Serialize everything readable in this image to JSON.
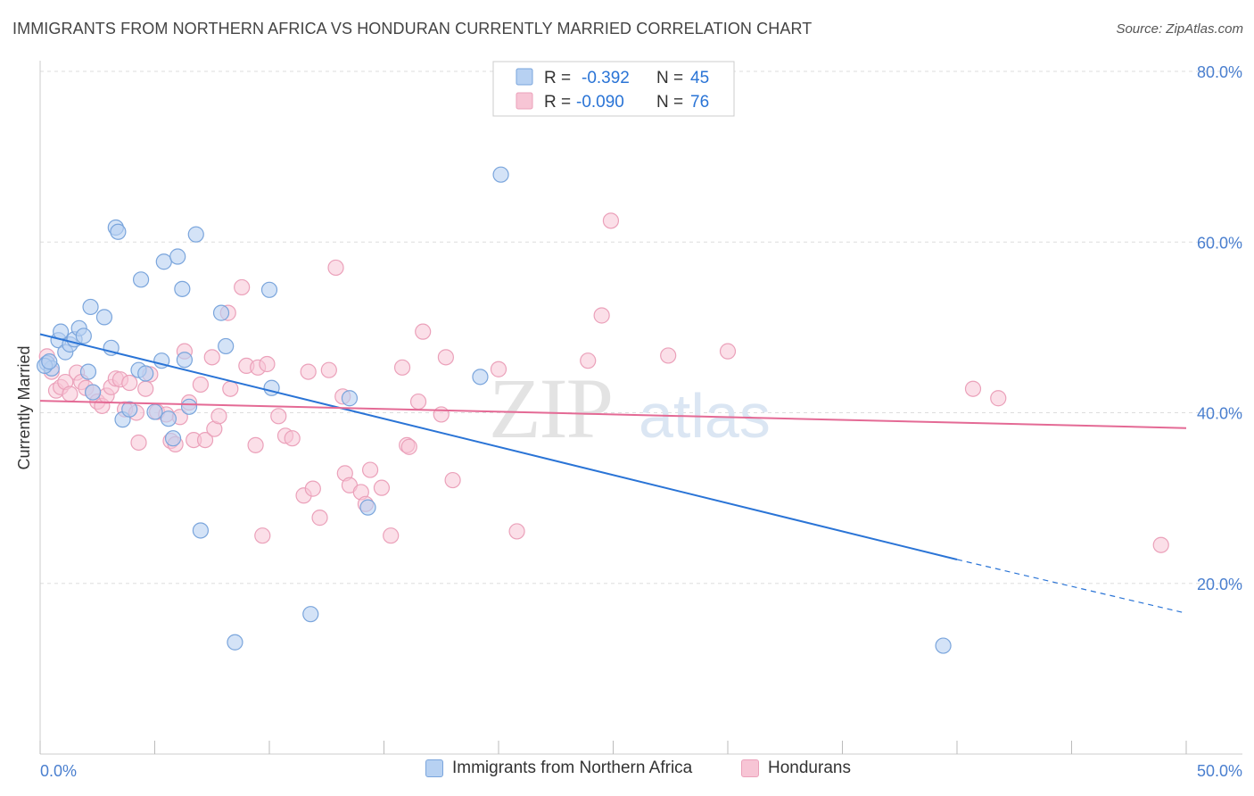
{
  "header": {
    "title": "IMMIGRANTS FROM NORTHERN AFRICA VS HONDURAN CURRENTLY MARRIED CORRELATION CHART",
    "source": "Source: ZipAtlas.com"
  },
  "watermark": {
    "zip": "ZIP",
    "atlas": "atlas"
  },
  "legend": {
    "rows": [
      {
        "r_label": "R =",
        "r_value": "-0.392",
        "n_label": "N =",
        "n_value": "45"
      },
      {
        "r_label": "R =",
        "r_value": "-0.090",
        "n_label": "N =",
        "n_value": "76"
      }
    ]
  },
  "bottom_legend": {
    "items": [
      "Immigrants from Northern Africa",
      "Hondurans"
    ]
  },
  "colors": {
    "blue_fill": "#b7d1f2",
    "blue_stroke": "#7aa5dc",
    "blue_line": "#2a74d6",
    "pink_fill": "#f7c5d5",
    "pink_stroke": "#eba1ba",
    "pink_line": "#e46a95",
    "tick_label": "#4a7fcf",
    "grid": "#dddddd"
  },
  "chart_data": {
    "type": "scatter",
    "title": "IMMIGRANTS FROM NORTHERN AFRICA VS HONDURAN CURRENTLY MARRIED CORRELATION CHART",
    "xlabel": "",
    "ylabel": "Currently Married",
    "xlim": [
      0,
      50
    ],
    "ylim": [
      0,
      80
    ],
    "x_tick_labels": [
      "0.0%",
      "50.0%"
    ],
    "y_ticks": [
      20,
      40,
      60,
      80
    ],
    "y_tick_labels": [
      "20.0%",
      "40.0%",
      "60.0%",
      "80.0%"
    ],
    "grid": true,
    "legend_position": "top-center",
    "series": [
      {
        "name": "Immigrants from Northern Africa",
        "r": -0.392,
        "n": 45,
        "trend": {
          "x0": 0,
          "y0": 49.2,
          "x1": 40,
          "y1": 22.8,
          "dash_to_x": 50,
          "dash_to_y": 16.5
        },
        "points": [
          [
            0.3,
            45.8
          ],
          [
            0.5,
            45.2
          ],
          [
            0.8,
            48.5
          ],
          [
            0.9,
            49.5
          ],
          [
            1.1,
            47.1
          ],
          [
            1.3,
            48.0
          ],
          [
            1.5,
            48.6
          ],
          [
            1.7,
            49.9
          ],
          [
            1.9,
            49.0
          ],
          [
            2.1,
            44.8
          ],
          [
            2.2,
            52.4
          ],
          [
            2.3,
            42.4
          ],
          [
            2.8,
            51.2
          ],
          [
            3.1,
            47.6
          ],
          [
            3.3,
            61.7
          ],
          [
            3.4,
            61.2
          ],
          [
            3.6,
            39.2
          ],
          [
            3.9,
            40.4
          ],
          [
            4.3,
            45.0
          ],
          [
            4.4,
            55.6
          ],
          [
            4.6,
            44.6
          ],
          [
            5.0,
            40.1
          ],
          [
            5.3,
            46.1
          ],
          [
            5.4,
            57.7
          ],
          [
            5.6,
            39.3
          ],
          [
            5.8,
            37.0
          ],
          [
            6.0,
            58.3
          ],
          [
            6.2,
            54.5
          ],
          [
            6.3,
            46.2
          ],
          [
            6.5,
            40.7
          ],
          [
            6.8,
            60.9
          ],
          [
            7.0,
            26.2
          ],
          [
            7.9,
            51.7
          ],
          [
            8.1,
            47.8
          ],
          [
            8.5,
            13.1
          ],
          [
            10.0,
            54.4
          ],
          [
            10.1,
            42.9
          ],
          [
            11.8,
            16.4
          ],
          [
            13.5,
            41.7
          ],
          [
            14.3,
            28.9
          ],
          [
            19.2,
            44.2
          ],
          [
            20.1,
            67.9
          ],
          [
            39.4,
            12.7
          ],
          [
            0.2,
            45.5
          ],
          [
            0.4,
            46.0
          ]
        ]
      },
      {
        "name": "Hondurans",
        "r": -0.09,
        "n": 76,
        "trend": {
          "x0": 0,
          "y0": 41.4,
          "x1": 50,
          "y1": 38.2
        },
        "points": [
          [
            0.3,
            46.6
          ],
          [
            0.5,
            44.8
          ],
          [
            0.7,
            42.6
          ],
          [
            0.9,
            43.0
          ],
          [
            1.1,
            43.6
          ],
          [
            1.3,
            42.2
          ],
          [
            1.6,
            44.7
          ],
          [
            1.8,
            43.6
          ],
          [
            2.0,
            42.9
          ],
          [
            2.3,
            42.4
          ],
          [
            2.5,
            41.3
          ],
          [
            2.7,
            40.8
          ],
          [
            2.9,
            42.0
          ],
          [
            3.1,
            43.0
          ],
          [
            3.3,
            44.0
          ],
          [
            3.5,
            43.9
          ],
          [
            3.7,
            40.4
          ],
          [
            3.9,
            43.5
          ],
          [
            4.2,
            40.0
          ],
          [
            4.3,
            36.5
          ],
          [
            4.6,
            42.8
          ],
          [
            4.8,
            44.5
          ],
          [
            5.1,
            40.1
          ],
          [
            5.5,
            39.8
          ],
          [
            5.7,
            36.7
          ],
          [
            5.9,
            36.3
          ],
          [
            6.1,
            39.5
          ],
          [
            6.3,
            47.2
          ],
          [
            6.5,
            41.2
          ],
          [
            6.7,
            36.8
          ],
          [
            7.0,
            43.3
          ],
          [
            7.2,
            36.8
          ],
          [
            7.5,
            46.5
          ],
          [
            7.6,
            38.1
          ],
          [
            7.8,
            39.6
          ],
          [
            8.3,
            42.8
          ],
          [
            8.2,
            51.7
          ],
          [
            8.8,
            54.7
          ],
          [
            9.0,
            45.5
          ],
          [
            9.4,
            36.2
          ],
          [
            9.5,
            45.3
          ],
          [
            9.7,
            25.6
          ],
          [
            9.9,
            45.7
          ],
          [
            10.4,
            39.6
          ],
          [
            10.7,
            37.3
          ],
          [
            11.0,
            37.0
          ],
          [
            11.5,
            30.3
          ],
          [
            11.7,
            44.8
          ],
          [
            11.9,
            31.1
          ],
          [
            12.2,
            27.7
          ],
          [
            12.6,
            45.0
          ],
          [
            12.9,
            57.0
          ],
          [
            13.2,
            41.9
          ],
          [
            13.3,
            32.9
          ],
          [
            13.5,
            31.5
          ],
          [
            14.0,
            30.7
          ],
          [
            14.2,
            29.3
          ],
          [
            14.4,
            33.3
          ],
          [
            14.9,
            31.2
          ],
          [
            15.3,
            25.6
          ],
          [
            15.8,
            45.3
          ],
          [
            16.0,
            36.2
          ],
          [
            16.1,
            36.0
          ],
          [
            16.5,
            41.3
          ],
          [
            16.7,
            49.5
          ],
          [
            17.5,
            39.8
          ],
          [
            17.7,
            46.5
          ],
          [
            18.0,
            32.1
          ],
          [
            20.0,
            45.1
          ],
          [
            20.8,
            26.1
          ],
          [
            23.9,
            46.1
          ],
          [
            24.5,
            51.4
          ],
          [
            24.9,
            62.5
          ],
          [
            27.4,
            46.7
          ],
          [
            30.0,
            47.2
          ],
          [
            48.9,
            24.5
          ]
        ]
      }
    ],
    "extra_pink_right": [
      [
        40.7,
        42.8
      ],
      [
        41.8,
        41.7
      ]
    ]
  }
}
